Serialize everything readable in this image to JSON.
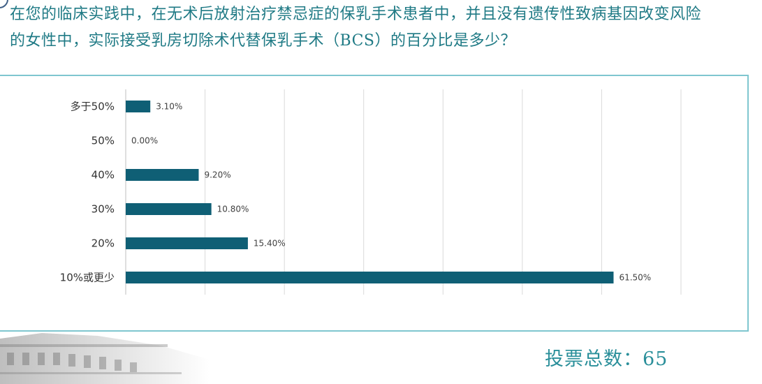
{
  "question": {
    "line1": "在您的临床实践中，在无术后放射治疗禁忌症的保乳手术患者中，并且没有遗传性致病基因改变风险",
    "line2": "的女性中，实际接受乳房切除术代替保乳手术（BCS）的百分比是多少？"
  },
  "chart_data": {
    "type": "bar",
    "orientation": "horizontal",
    "categories": [
      "多于50%",
      "50%",
      "40%",
      "30%",
      "20%",
      "10%或更少"
    ],
    "values": [
      3.1,
      0.0,
      9.2,
      10.8,
      15.4,
      61.5
    ],
    "value_labels": [
      "3.10%",
      "0.00%",
      "9.20%",
      "10.80%",
      "15.40%",
      "61.50%"
    ],
    "xlim": [
      0,
      70
    ],
    "grid": true,
    "bar_color": "#0f5f75"
  },
  "footer": {
    "vote_label": "投票总数：",
    "vote_count": "65"
  },
  "colors": {
    "question_text": "#1f7a85",
    "panel_border": "#7fc6cf",
    "gridline": "#d9d9d9",
    "vote_text": "#2a8f9a"
  }
}
